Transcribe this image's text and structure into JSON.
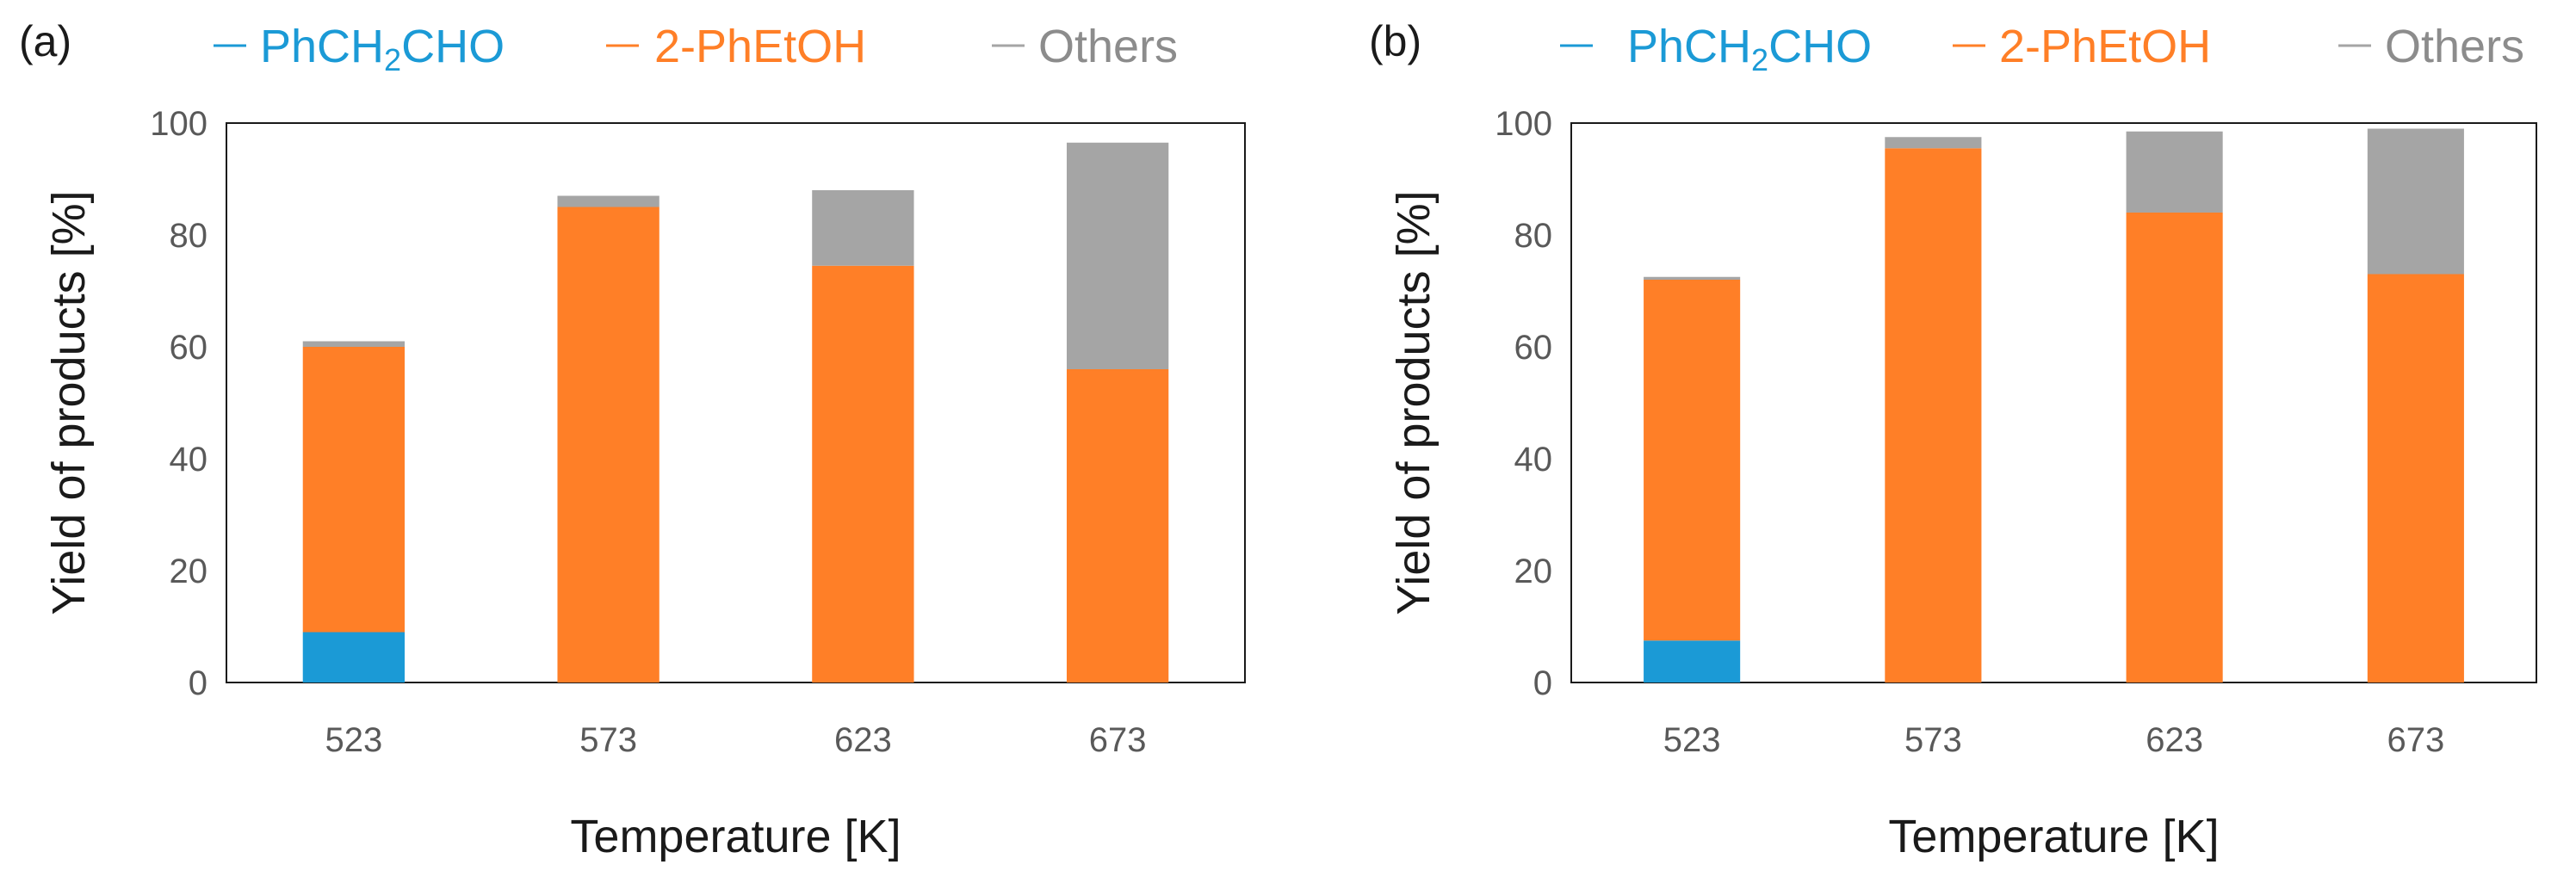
{
  "legend": {
    "items": [
      {
        "main": "PhCH",
        "sub": "2",
        "tail": "CHO",
        "color": "#1B9AD6"
      },
      {
        "main": "2-PhEtOH",
        "sub": "",
        "tail": "",
        "color": "#FF7F27"
      },
      {
        "main": "Others",
        "sub": "",
        "tail": "",
        "color": "#A5A5A5"
      }
    ]
  },
  "chart_data": [
    {
      "type": "bar",
      "stacked": true,
      "panel_label": "(a)",
      "categories": [
        "523",
        "573",
        "623",
        "673"
      ],
      "xlabel": "Temperature [K]",
      "ylabel": "Yield of products [%]",
      "ylim": [
        0,
        100
      ],
      "yticks": [
        0,
        20,
        40,
        60,
        80,
        100
      ],
      "grid": false,
      "legend_position": "top",
      "series": [
        {
          "name": "PhCH2CHO",
          "color": "#1B9AD6",
          "values": [
            9,
            0,
            0,
            0
          ]
        },
        {
          "name": "2-PhEtOH",
          "color": "#FF7F27",
          "values": [
            51,
            85,
            74.5,
            56
          ]
        },
        {
          "name": "Others",
          "color": "#A5A5A5",
          "values": [
            1,
            2,
            13.5,
            40.5
          ]
        }
      ]
    },
    {
      "type": "bar",
      "stacked": true,
      "panel_label": "(b)",
      "categories": [
        "523",
        "573",
        "623",
        "673"
      ],
      "xlabel": "Temperature [K]",
      "ylabel": "Yield of products [%]",
      "ylim": [
        0,
        100
      ],
      "yticks": [
        0,
        20,
        40,
        60,
        80,
        100
      ],
      "grid": false,
      "legend_position": "top",
      "series": [
        {
          "name": "PhCH2CHO",
          "color": "#1B9AD6",
          "values": [
            7.5,
            0,
            0,
            0
          ]
        },
        {
          "name": "2-PhEtOH",
          "color": "#FF7F27",
          "values": [
            64.5,
            95.5,
            84,
            73
          ]
        },
        {
          "name": "Others",
          "color": "#A5A5A5",
          "values": [
            0.5,
            2,
            14.5,
            26
          ]
        }
      ]
    }
  ]
}
